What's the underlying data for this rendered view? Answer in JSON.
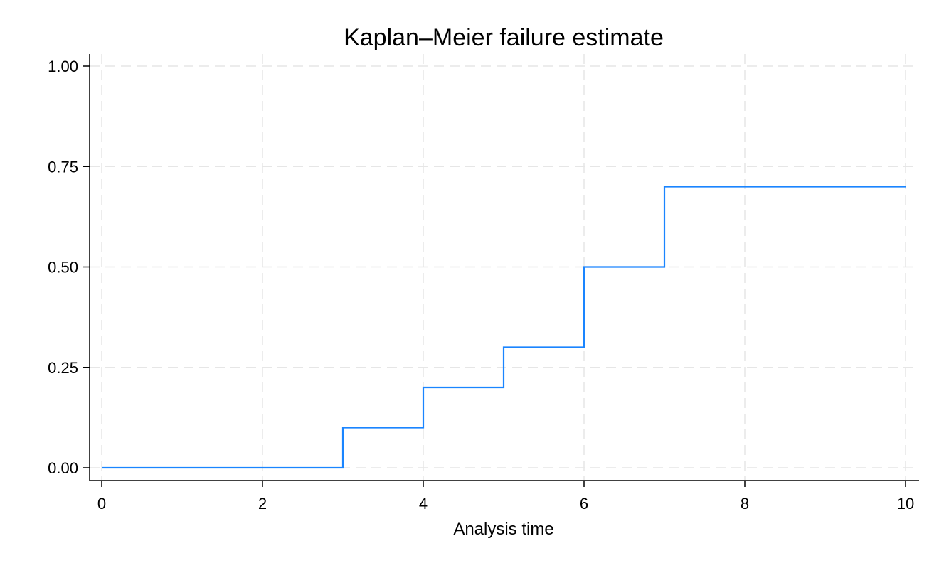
{
  "chart_data": {
    "type": "line",
    "step": true,
    "title": "Kaplan–Meier failure estimate",
    "xlabel": "Analysis time",
    "ylabel": "",
    "xlim": [
      0,
      10
    ],
    "ylim": [
      0,
      1
    ],
    "x_ticks": [
      0,
      2,
      4,
      6,
      8,
      10
    ],
    "x_tick_labels": [
      "0",
      "2",
      "4",
      "6",
      "8",
      "10"
    ],
    "y_ticks": [
      0,
      0.25,
      0.5,
      0.75,
      1
    ],
    "y_tick_labels": [
      "0.00",
      "0.25",
      "0.50",
      "0.75",
      "1.00"
    ],
    "grid": true,
    "series": [
      {
        "color": "#1a85ff",
        "x": [
          0,
          3,
          4,
          5,
          6,
          7,
          10
        ],
        "y": [
          0,
          0.1,
          0.2,
          0.3,
          0.5,
          0.7,
          0.7
        ]
      }
    ]
  }
}
